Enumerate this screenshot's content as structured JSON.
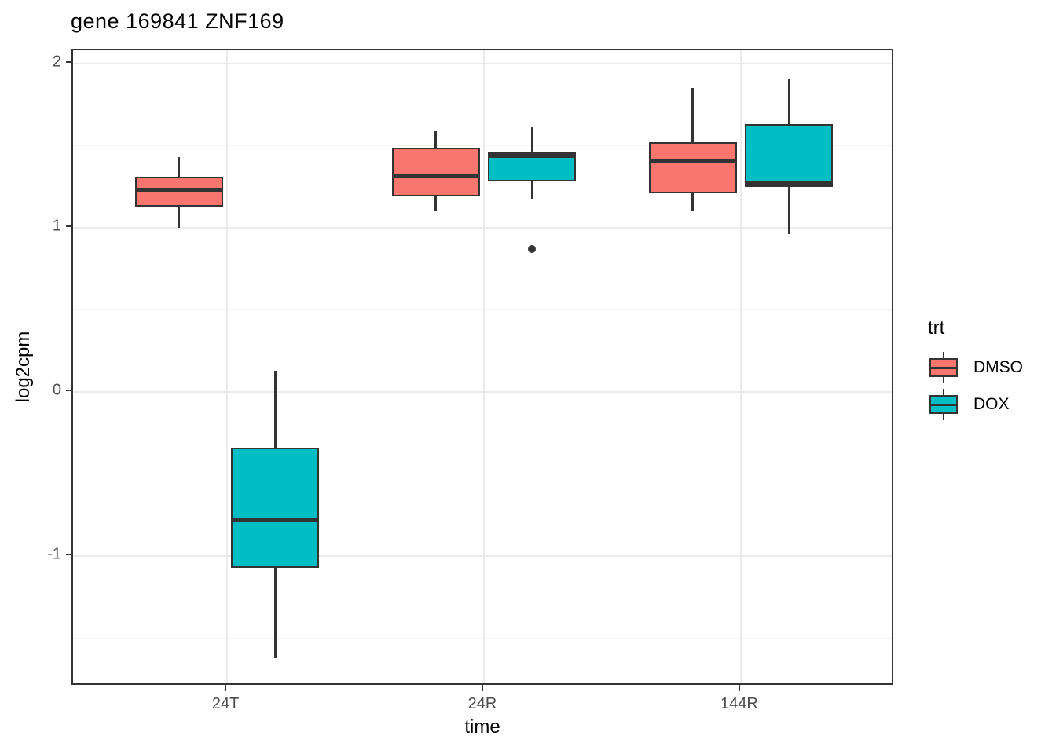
{
  "title": "gene 169841 ZNF169",
  "axes": {
    "x_label": "time",
    "y_label": "log2cpm",
    "x_tick_labels": [
      "24T",
      "24R",
      "144R"
    ],
    "y_tick_labels": [
      "2",
      "1",
      "0",
      "-1"
    ]
  },
  "legend": {
    "title": "trt",
    "entries": [
      {
        "label": "DMSO",
        "color": "#F8766D"
      },
      {
        "label": "DOX",
        "color": "#00BFC4"
      }
    ]
  },
  "colors": {
    "dmso_fill": "#F8766D",
    "dox_fill": "#00BFC4",
    "box_border": "#333333",
    "grid_major": "#EBEBEB",
    "grid_minor": "#F3F3F3",
    "panel_border": "#333333",
    "tick_label": "#4D4D4D",
    "text": "#000000"
  },
  "chart_data": {
    "type": "boxplot",
    "title": "gene 169841 ZNF169",
    "xlabel": "time",
    "ylabel": "log2cpm",
    "categories": [
      "24T",
      "24R",
      "144R"
    ],
    "ylim": [
      -1.79,
      2.08
    ],
    "y_major_breaks": [
      2,
      1,
      0,
      -1
    ],
    "y_minor_breaks": [
      1.5,
      0.5,
      -0.5,
      -1.5
    ],
    "grid": true,
    "legend_position": "right",
    "legend_title": "trt",
    "series": [
      {
        "name": "DMSO",
        "color": "#F8766D",
        "boxes": [
          {
            "category": "24T",
            "whisker_low": 1.0,
            "q1": 1.13,
            "median": 1.23,
            "q3": 1.31,
            "whisker_high": 1.43,
            "outliers": []
          },
          {
            "category": "24R",
            "whisker_low": 1.1,
            "q1": 1.19,
            "median": 1.32,
            "q3": 1.49,
            "whisker_high": 1.59,
            "outliers": []
          },
          {
            "category": "144R",
            "whisker_low": 1.1,
            "q1": 1.21,
            "median": 1.41,
            "q3": 1.52,
            "whisker_high": 1.85,
            "outliers": []
          }
        ]
      },
      {
        "name": "DOX",
        "color": "#00BFC4",
        "boxes": [
          {
            "category": "24T",
            "whisker_low": -1.62,
            "q1": -1.07,
            "median": -0.78,
            "q3": -0.34,
            "whisker_high": 0.13,
            "outliers": []
          },
          {
            "category": "24R",
            "whisker_low": 1.17,
            "q1": 1.28,
            "median": 1.44,
            "q3": 1.46,
            "whisker_high": 1.61,
            "outliers": [
              0.87
            ]
          },
          {
            "category": "144R",
            "whisker_low": 0.96,
            "q1": 1.25,
            "median": 1.27,
            "q3": 1.63,
            "whisker_high": 1.91,
            "outliers": []
          }
        ]
      }
    ]
  }
}
